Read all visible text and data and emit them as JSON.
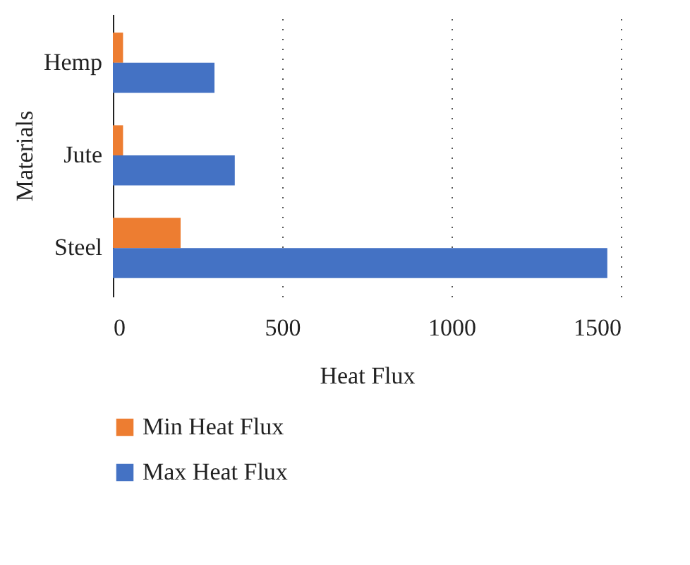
{
  "chart_data": {
    "type": "bar",
    "orientation": "horizontal",
    "xlabel": "Heat Flux",
    "ylabel": "Materials",
    "categories": [
      "Hemp",
      "Jute",
      "Steel"
    ],
    "series": [
      {
        "name": "Min Heat Flux",
        "color": "#ed7d31",
        "values": [
          30,
          30,
          200
        ]
      },
      {
        "name": "Max Heat Flux",
        "color": "#4472c4",
        "values": [
          300,
          360,
          1460
        ]
      }
    ],
    "xlim": [
      0,
      1500
    ],
    "xticks": [
      0,
      500,
      1000,
      1500
    ],
    "grid": "x",
    "legend": "bottom"
  }
}
